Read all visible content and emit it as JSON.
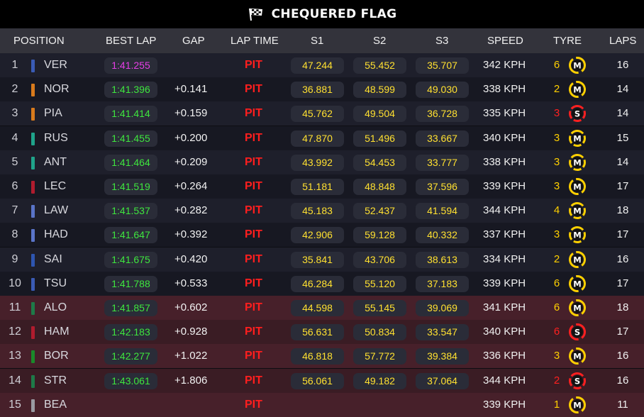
{
  "banner": {
    "title": "CHEQUERED FLAG",
    "icon": "chequered-flag-icon"
  },
  "headers": {
    "position": "POSITION",
    "best_lap": "BEST LAP",
    "gap": "GAP",
    "lap_time": "LAP TIME",
    "s1": "S1",
    "s2": "S2",
    "s3": "S3",
    "speed": "SPEED",
    "tyre": "TYRE",
    "laps": "LAPS"
  },
  "colors": {
    "fastest_lap": "#e63ee6",
    "personal_best": "#3ee63e",
    "sector": "#ffe030",
    "pit": "#ff1e1e",
    "medium_tyre": "#ffd000",
    "soft_tyre": "#ff2020",
    "eliminated_row": "#47202a"
  },
  "rows": [
    {
      "pos": "1",
      "driver": "VER",
      "team_color": "#3a5bb5",
      "best_lap": "1:41.255",
      "fastest": true,
      "gap": "",
      "lap_time": "PIT",
      "s1": "47.244",
      "s2": "55.452",
      "s3": "35.707",
      "speed": "342 KPH",
      "tyre_laps": "6",
      "tyre": "M",
      "tyre_used": false,
      "laps": "16",
      "eliminated": false
    },
    {
      "pos": "2",
      "driver": "NOR",
      "team_color": "#d87a1c",
      "best_lap": "1:41.396",
      "fastest": false,
      "gap": "+0.141",
      "lap_time": "PIT",
      "s1": "36.881",
      "s2": "48.599",
      "s3": "49.030",
      "speed": "338 KPH",
      "tyre_laps": "2",
      "tyre": "M",
      "tyre_used": false,
      "laps": "14",
      "eliminated": false
    },
    {
      "pos": "3",
      "driver": "PIA",
      "team_color": "#d87a1c",
      "best_lap": "1:41.414",
      "fastest": false,
      "gap": "+0.159",
      "lap_time": "PIT",
      "s1": "45.762",
      "s2": "49.504",
      "s3": "36.728",
      "speed": "335 KPH",
      "tyre_laps": "3",
      "tyre": "S",
      "tyre_used": true,
      "laps": "14",
      "eliminated": false
    },
    {
      "pos": "4",
      "driver": "RUS",
      "team_color": "#1fa38a",
      "best_lap": "1:41.455",
      "fastest": false,
      "gap": "+0.200",
      "lap_time": "PIT",
      "s1": "47.870",
      "s2": "51.496",
      "s3": "33.667",
      "speed": "340 KPH",
      "tyre_laps": "3",
      "tyre": "M",
      "tyre_used": true,
      "laps": "15",
      "eliminated": false
    },
    {
      "pos": "5",
      "driver": "ANT",
      "team_color": "#1fa38a",
      "best_lap": "1:41.464",
      "fastest": false,
      "gap": "+0.209",
      "lap_time": "PIT",
      "s1": "43.992",
      "s2": "54.453",
      "s3": "33.777",
      "speed": "338 KPH",
      "tyre_laps": "3",
      "tyre": "M",
      "tyre_used": true,
      "laps": "14",
      "eliminated": false
    },
    {
      "pos": "6",
      "driver": "LEC",
      "team_color": "#b01c2e",
      "best_lap": "1:41.519",
      "fastest": false,
      "gap": "+0.264",
      "lap_time": "PIT",
      "s1": "51.181",
      "s2": "48.848",
      "s3": "37.596",
      "speed": "339 KPH",
      "tyre_laps": "3",
      "tyre": "M",
      "tyre_used": false,
      "laps": "17",
      "eliminated": false
    },
    {
      "pos": "7",
      "driver": "LAW",
      "team_color": "#5a74c8",
      "best_lap": "1:41.537",
      "fastest": false,
      "gap": "+0.282",
      "lap_time": "PIT",
      "s1": "45.183",
      "s2": "52.437",
      "s3": "41.594",
      "speed": "344 KPH",
      "tyre_laps": "4",
      "tyre": "M",
      "tyre_used": true,
      "laps": "18",
      "eliminated": false
    },
    {
      "pos": "8",
      "driver": "HAD",
      "team_color": "#5a74c8",
      "best_lap": "1:41.647",
      "fastest": false,
      "gap": "+0.392",
      "lap_time": "PIT",
      "s1": "42.906",
      "s2": "59.128",
      "s3": "40.332",
      "speed": "337 KPH",
      "tyre_laps": "3",
      "tyre": "M",
      "tyre_used": true,
      "laps": "17",
      "eliminated": false
    },
    {
      "pos": "9",
      "driver": "SAI",
      "team_color": "#2e55b0",
      "best_lap": "1:41.675",
      "fastest": false,
      "gap": "+0.420",
      "lap_time": "PIT",
      "s1": "35.841",
      "s2": "43.706",
      "s3": "38.613",
      "speed": "334 KPH",
      "tyre_laps": "2",
      "tyre": "M",
      "tyre_used": false,
      "laps": "16",
      "eliminated": false
    },
    {
      "pos": "10",
      "driver": "TSU",
      "team_color": "#3a5bb5",
      "best_lap": "1:41.788",
      "fastest": false,
      "gap": "+0.533",
      "lap_time": "PIT",
      "s1": "46.284",
      "s2": "55.120",
      "s3": "37.183",
      "speed": "339 KPH",
      "tyre_laps": "6",
      "tyre": "M",
      "tyre_used": false,
      "laps": "17",
      "eliminated": false
    },
    {
      "pos": "11",
      "driver": "ALO",
      "team_color": "#1e7a48",
      "best_lap": "1:41.857",
      "fastest": false,
      "gap": "+0.602",
      "lap_time": "PIT",
      "s1": "44.598",
      "s2": "55.145",
      "s3": "39.069",
      "speed": "341 KPH",
      "tyre_laps": "6",
      "tyre": "M",
      "tyre_used": false,
      "laps": "18",
      "eliminated": true
    },
    {
      "pos": "12",
      "driver": "HAM",
      "team_color": "#b01c2e",
      "best_lap": "1:42.183",
      "fastest": false,
      "gap": "+0.928",
      "lap_time": "PIT",
      "s1": "56.631",
      "s2": "50.834",
      "s3": "33.547",
      "speed": "340 KPH",
      "tyre_laps": "6",
      "tyre": "S",
      "tyre_used": false,
      "laps": "17",
      "eliminated": true
    },
    {
      "pos": "13",
      "driver": "BOR",
      "team_color": "#1a8a2a",
      "best_lap": "1:42.277",
      "fastest": false,
      "gap": "+1.022",
      "lap_time": "PIT",
      "s1": "46.818",
      "s2": "57.772",
      "s3": "39.384",
      "speed": "336 KPH",
      "tyre_laps": "3",
      "tyre": "M",
      "tyre_used": false,
      "laps": "16",
      "eliminated": true
    },
    {
      "pos": "14",
      "driver": "STR",
      "team_color": "#1e7a48",
      "best_lap": "1:43.061",
      "fastest": false,
      "gap": "+1.806",
      "lap_time": "PIT",
      "s1": "56.061",
      "s2": "49.182",
      "s3": "37.064",
      "speed": "344 KPH",
      "tyre_laps": "2",
      "tyre": "S",
      "tyre_used": true,
      "laps": "16",
      "eliminated": true
    },
    {
      "pos": "15",
      "driver": "BEA",
      "team_color": "#9a9aa2",
      "best_lap": "",
      "fastest": false,
      "gap": "",
      "lap_time": "PIT",
      "s1": "",
      "s2": "",
      "s3": "",
      "speed": "339 KPH",
      "tyre_laps": "1",
      "tyre": "M",
      "tyre_used": false,
      "laps": "11",
      "eliminated": true
    }
  ]
}
